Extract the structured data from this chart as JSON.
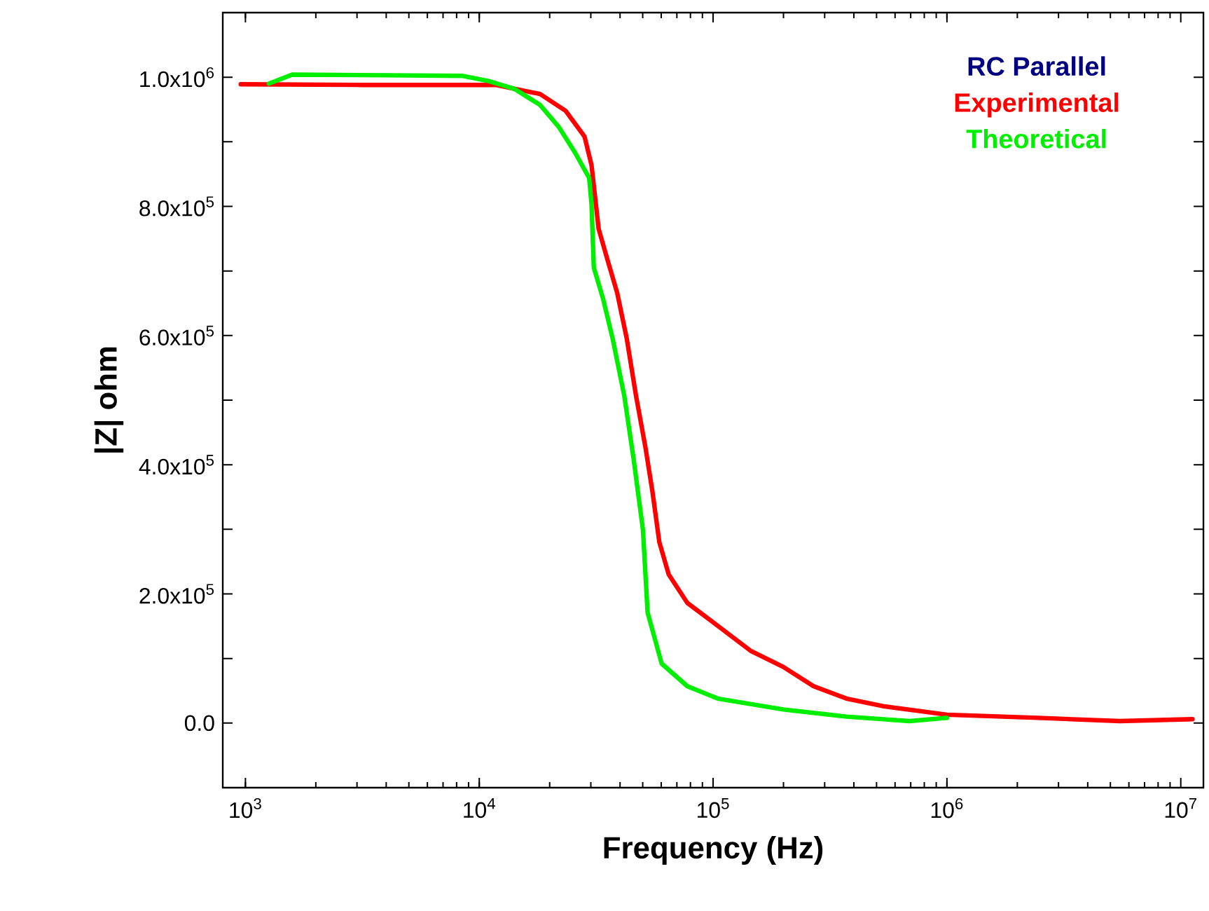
{
  "chart_data": {
    "type": "line",
    "xlabel": "Frequency (Hz)",
    "ylabel": "|Z| ohm",
    "legend_title": "RC Parallel",
    "legend": "top right",
    "log": "x",
    "grid": false,
    "marker": "none",
    "line_style": "solid",
    "xlim": [
      800,
      12500000
    ],
    "ylim": [
      -100000,
      1100000
    ],
    "xticks": [
      {
        "value": 1000,
        "label": "10$^{3}$"
      },
      {
        "value": 10000,
        "label": "10$^{4}$"
      },
      {
        "value": 100000,
        "label": "10$^{5}$"
      },
      {
        "value": 1000000,
        "label": "10$^{6}$"
      },
      {
        "value": 10000000,
        "label": "10$^{7}$"
      }
    ],
    "yticks": [
      {
        "value": 0,
        "label": "0.0"
      },
      {
        "value": 100000,
        "label": null
      },
      {
        "value": 200000,
        "label": "2.0x10$^{5}$"
      },
      {
        "value": 300000,
        "label": null
      },
      {
        "value": 400000,
        "label": "4.0x10$^{5}$"
      },
      {
        "value": 500000,
        "label": null
      },
      {
        "value": 600000,
        "label": "6.0x10$^{5}$"
      },
      {
        "value": 700000,
        "label": null
      },
      {
        "value": 800000,
        "label": "8.0x10$^{5}$"
      },
      {
        "value": 900000,
        "label": null
      },
      {
        "value": 1000000,
        "label": "1.0x10$^{6}$"
      }
    ],
    "series": [
      {
        "name": "Experimental",
        "color": "#ff0000",
        "x": [
          955,
          3162,
          11750,
          18200,
          23400,
          28200,
          30200,
          32400,
          35500,
          38900,
          42700,
          46800,
          51300,
          55000,
          58900,
          64600,
          77600,
          100000,
          144500,
          199500,
          269000,
          371500,
          537000,
          1000000,
          2455000,
          5495000,
          11220000
        ],
        "values": [
          989000,
          988000,
          988000,
          974000,
          948000,
          908000,
          864000,
          765000,
          715000,
          666000,
          596000,
          507000,
          428000,
          359000,
          280000,
          230000,
          186000,
          156000,
          112000,
          87000,
          57000,
          38000,
          26000,
          13000,
          8000,
          3000,
          6000
        ]
      },
      {
        "name": "Theoretical",
        "color": "#00ee00",
        "x": [
          1259,
          1585,
          3981,
          8511,
          10960,
          14130,
          18200,
          21880,
          25700,
          29510,
          30200,
          30900,
          33900,
          37150,
          41690,
          45710,
          50120,
          52480,
          60260,
          77600,
          104700,
          199500,
          371500,
          691800,
          1000000
        ],
        "values": [
          990000,
          1004000,
          1003000,
          1002000,
          994000,
          982000,
          957000,
          923000,
          883000,
          844000,
          804000,
          705000,
          656000,
          596000,
          507000,
          409000,
          299000,
          171000,
          92000,
          57000,
          38000,
          21000,
          10000,
          3000,
          8000
        ]
      }
    ]
  }
}
